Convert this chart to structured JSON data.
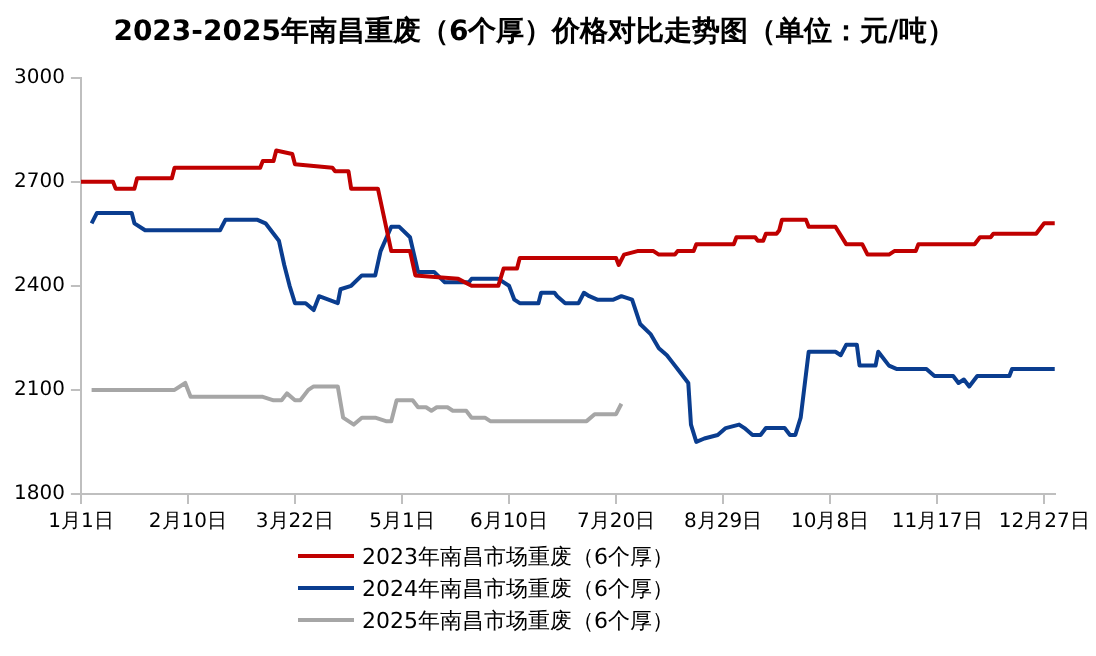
{
  "chart_data": {
    "type": "line",
    "title": "2023-2025年南昌重废（6个厚）价格对比走势图（单位：元/吨）",
    "xlim": [
      "--01-01",
      "--12-31"
    ],
    "xticks": [
      {
        "value": "--01-01",
        "label": "1月1日"
      },
      {
        "value": "--02-10",
        "label": "2月10日"
      },
      {
        "value": "--03-22",
        "label": "3月22日"
      },
      {
        "value": "--05-01",
        "label": "5月1日"
      },
      {
        "value": "--06-10",
        "label": "6月10日"
      },
      {
        "value": "--07-20",
        "label": "7月20日"
      },
      {
        "value": "--08-29",
        "label": "8月29日"
      },
      {
        "value": "--10-08",
        "label": "10月8日"
      },
      {
        "value": "--11-17",
        "label": "11月17日"
      },
      {
        "value": "--12-27",
        "label": "12月27日"
      }
    ],
    "ylim": [
      1800,
      3000
    ],
    "yticks": [
      1800,
      2100,
      2400,
      2700,
      3000
    ],
    "grid": false,
    "legend": "bottom",
    "marker": "none",
    "line_style": "solid",
    "series": [
      {
        "name": "2023年南昌市场重废（6个厚）",
        "color": "#c00000",
        "x": [
          "--01-01",
          "--01-13",
          "--01-14",
          "--01-21",
          "--01-22",
          "--02-04",
          "--02-05",
          "--03-09",
          "--03-10",
          "--03-14",
          "--03-15",
          "--03-21",
          "--03-22",
          "--04-05",
          "--04-06",
          "--04-11",
          "--04-12",
          "--04-22",
          "--04-27",
          "--05-04",
          "--05-06",
          "--05-22",
          "--05-27",
          "--06-06",
          "--06-08",
          "--06-13",
          "--06-14",
          "--07-20",
          "--07-21",
          "--07-23",
          "--07-28",
          "--08-03",
          "--08-05",
          "--08-11",
          "--08-12",
          "--08-18",
          "--08-19",
          "--09-02",
          "--09-03",
          "--09-10",
          "--09-11",
          "--09-13",
          "--09-14",
          "--09-18",
          "--09-19",
          "--09-20",
          "--09-29",
          "--09-30",
          "--10-10",
          "--10-14",
          "--10-20",
          "--10-22",
          "--10-30",
          "--11-01",
          "--11-09",
          "--11-10",
          "--12-01",
          "--12-03",
          "--12-07",
          "--12-08",
          "--12-24",
          "--12-27",
          "--12-31"
        ],
        "values": [
          2700,
          2700,
          2680,
          2680,
          2710,
          2710,
          2740,
          2740,
          2760,
          2760,
          2790,
          2780,
          2750,
          2740,
          2730,
          2730,
          2680,
          2680,
          2500,
          2500,
          2430,
          2420,
          2400,
          2400,
          2450,
          2450,
          2480,
          2480,
          2460,
          2490,
          2500,
          2500,
          2490,
          2490,
          2500,
          2500,
          2520,
          2520,
          2540,
          2540,
          2530,
          2530,
          2550,
          2550,
          2560,
          2590,
          2590,
          2570,
          2570,
          2520,
          2520,
          2490,
          2490,
          2500,
          2500,
          2520,
          2520,
          2540,
          2540,
          2550,
          2550,
          2580,
          2580
        ]
      },
      {
        "name": "2024年南昌市场重废（6个厚）",
        "color": "#0a3d8f",
        "x": [
          "--01-05",
          "--01-07",
          "--01-20",
          "--01-21",
          "--01-25",
          "--02-22",
          "--02-24",
          "--03-08",
          "--03-11",
          "--03-16",
          "--03-18",
          "--03-20",
          "--03-22",
          "--03-26",
          "--03-29",
          "--03-31",
          "--04-07",
          "--04-08",
          "--04-12",
          "--04-16",
          "--04-21",
          "--04-23",
          "--04-27",
          "--04-30",
          "--05-04",
          "--05-07",
          "--05-13",
          "--05-17",
          "--05-26",
          "--05-27",
          "--06-06",
          "--06-10",
          "--06-12",
          "--06-14",
          "--06-21",
          "--06-22",
          "--06-27",
          "--06-28",
          "--07-01",
          "--07-06",
          "--07-08",
          "--07-10",
          "--07-13",
          "--07-19",
          "--07-22",
          "--07-26",
          "--07-29",
          "--08-02",
          "--08-05",
          "--08-08",
          "--08-10",
          "--08-13",
          "--08-16",
          "--08-17",
          "--08-19",
          "--08-22",
          "--08-27",
          "--08-30",
          "--09-04",
          "--09-06",
          "--09-09",
          "--09-12",
          "--09-14",
          "--09-21",
          "--09-23",
          "--09-25",
          "--09-27",
          "--09-30",
          "--10-10",
          "--10-12",
          "--10-14",
          "--10-18",
          "--10-19",
          "--10-25",
          "--10-26",
          "--10-30",
          "--11-02",
          "--11-13",
          "--11-16",
          "--11-23",
          "--11-25",
          "--11-27",
          "--11-29",
          "--12-02",
          "--12-14",
          "--12-15",
          "--12-31"
        ],
        "values": [
          2580,
          2610,
          2610,
          2580,
          2560,
          2560,
          2590,
          2590,
          2580,
          2530,
          2460,
          2400,
          2350,
          2350,
          2330,
          2370,
          2350,
          2390,
          2400,
          2430,
          2430,
          2500,
          2570,
          2570,
          2540,
          2440,
          2440,
          2410,
          2410,
          2420,
          2420,
          2400,
          2360,
          2350,
          2350,
          2380,
          2380,
          2370,
          2350,
          2350,
          2380,
          2370,
          2360,
          2360,
          2370,
          2360,
          2290,
          2260,
          2220,
          2200,
          2180,
          2150,
          2120,
          2000,
          1950,
          1960,
          1970,
          1990,
          2000,
          1990,
          1970,
          1970,
          1990,
          1990,
          1970,
          1970,
          2020,
          2210,
          2210,
          2200,
          2230,
          2230,
          2170,
          2170,
          2210,
          2170,
          2160,
          2160,
          2140,
          2140,
          2120,
          2130,
          2110,
          2140,
          2140,
          2160,
          2160
        ]
      },
      {
        "name": "2025年南昌市场重废（6个厚）",
        "color": "#a6a6a6",
        "x": [
          "--01-05",
          "--02-05",
          "--02-09",
          "--02-11",
          "--03-10",
          "--03-14",
          "--03-17",
          "--03-19",
          "--03-22",
          "--03-24",
          "--03-27",
          "--03-29",
          "--04-07",
          "--04-09",
          "--04-13",
          "--04-16",
          "--04-21",
          "--04-25",
          "--04-27",
          "--04-29",
          "--05-05",
          "--05-07",
          "--05-10",
          "--05-12",
          "--05-14",
          "--05-18",
          "--05-20",
          "--05-25",
          "--05-27",
          "--06-01",
          "--06-03",
          "--07-09",
          "--07-12",
          "--07-20",
          "--07-22"
        ],
        "values": [
          2100,
          2100,
          2120,
          2080,
          2080,
          2070,
          2070,
          2090,
          2070,
          2070,
          2100,
          2110,
          2110,
          2020,
          2000,
          2020,
          2020,
          2010,
          2010,
          2070,
          2070,
          2050,
          2050,
          2040,
          2050,
          2050,
          2040,
          2040,
          2020,
          2020,
          2010,
          2010,
          2030,
          2030,
          2060
        ]
      }
    ]
  }
}
